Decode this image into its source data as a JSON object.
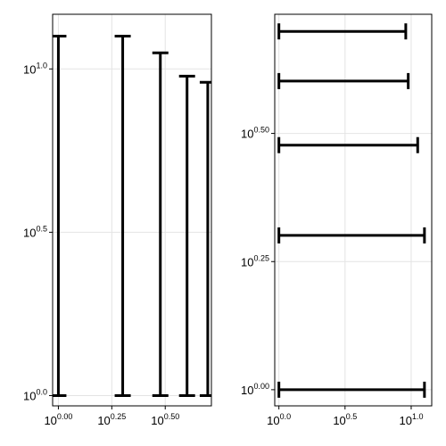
{
  "chart_data": [
    {
      "type": "errorbar",
      "orientation": "vertical",
      "xscale": "log10",
      "yscale": "log10",
      "grid": true,
      "x_ticks": [
        {
          "value": 1.0,
          "label_base": "10",
          "label_exp": "0.00"
        },
        {
          "value": 1.778,
          "label_base": "10",
          "label_exp": "0.25"
        },
        {
          "value": 3.162,
          "label_base": "10",
          "label_exp": "0.50"
        }
      ],
      "y_ticks": [
        {
          "value": 1.0,
          "label_base": "10",
          "label_exp": "0.0"
        },
        {
          "value": 3.162,
          "label_base": "10",
          "label_exp": "0.5"
        },
        {
          "value": 10.0,
          "label_base": "10",
          "label_exp": "1.0"
        }
      ],
      "xlim": [
        0.94,
        5.2
      ],
      "ylim": [
        0.93,
        14.7
      ],
      "bars": [
        {
          "x": 1.0,
          "low": 1.0,
          "high": 12.6
        },
        {
          "x": 2.0,
          "low": 1.0,
          "high": 12.6
        },
        {
          "x": 3.0,
          "low": 1.0,
          "high": 11.2
        },
        {
          "x": 4.0,
          "low": 1.0,
          "high": 9.5
        },
        {
          "x": 5.0,
          "low": 1.0,
          "high": 9.1
        }
      ]
    },
    {
      "type": "errorbar",
      "orientation": "horizontal",
      "xscale": "log10",
      "yscale": "log10",
      "grid": true,
      "x_ticks": [
        {
          "value": 1.0,
          "label_base": "10",
          "label_exp": "0.0"
        },
        {
          "value": 3.162,
          "label_base": "10",
          "label_exp": "0.5"
        },
        {
          "value": 10.0,
          "label_base": "10",
          "label_exp": "1.0"
        }
      ],
      "y_ticks": [
        {
          "value": 1.0,
          "label_base": "10",
          "label_exp": "0.00"
        },
        {
          "value": 1.778,
          "label_base": "10",
          "label_exp": "0.25"
        },
        {
          "value": 3.162,
          "label_base": "10",
          "label_exp": "0.50"
        }
      ],
      "xlim": [
        0.93,
        14.3
      ],
      "ylim": [
        0.93,
        5.4
      ],
      "bars": [
        {
          "y": 1.0,
          "low": 1.0,
          "high": 12.6
        },
        {
          "y": 2.0,
          "low": 1.0,
          "high": 12.6
        },
        {
          "y": 3.0,
          "low": 1.0,
          "high": 11.2
        },
        {
          "y": 4.0,
          "low": 1.0,
          "high": 9.5
        },
        {
          "y": 5.0,
          "low": 1.0,
          "high": 9.1
        }
      ]
    }
  ]
}
